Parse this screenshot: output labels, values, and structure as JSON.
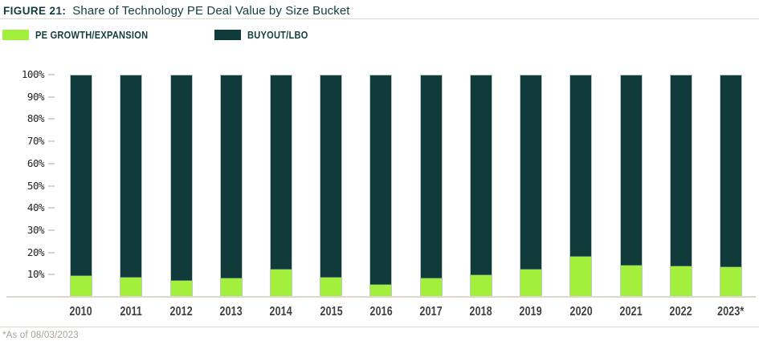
{
  "header": {
    "figure_label": "FIGURE 21:",
    "title": "Share of Technology PE Deal Value by Size Bucket"
  },
  "legend": {
    "items": [
      {
        "label": "PE GROWTH/EXPANSION",
        "color": "#a2ef3c"
      },
      {
        "label": "BUYOUT/LBO",
        "color": "#113a3a"
      }
    ]
  },
  "footer": {
    "note": "*As of 08/03/2023"
  },
  "colors": {
    "growth_green": "#a2ef3c",
    "buyout_teal": "#113a3a",
    "header_teal": "#133d3f",
    "axis_text": "#222222",
    "year_text": "#3f3f3f",
    "rule_gray": "#ddd7ce",
    "footnote_gray": "#a89f96"
  },
  "chart_data": {
    "type": "bar",
    "stacked": true,
    "title": "Share of Technology PE Deal Value by Size Bucket",
    "xlabel": "",
    "ylabel": "",
    "ylim": [
      0,
      100
    ],
    "grid": false,
    "legend_position": "top",
    "categories": [
      "2010",
      "2011",
      "2012",
      "2013",
      "2014",
      "2015",
      "2016",
      "2017",
      "2018",
      "2019",
      "2020",
      "2021",
      "2022",
      "2023*"
    ],
    "series": [
      {
        "name": "PE GROWTH/EXPANSION",
        "color": "#a2ef3c",
        "values": [
          9,
          8.5,
          7,
          8,
          12,
          8.5,
          5,
          8,
          9.5,
          12,
          18,
          14,
          13.5,
          13
        ]
      },
      {
        "name": "BUYOUT/LBO",
        "color": "#113a3a",
        "values": [
          91,
          91.5,
          93,
          92,
          88,
          91.5,
          95,
          92,
          90.5,
          88,
          82,
          86,
          86.5,
          87
        ]
      }
    ],
    "y_ticks": [
      "100%",
      "90%",
      "80%",
      "70%",
      "60%",
      "50%",
      "40%",
      "30%",
      "20%",
      "10%"
    ]
  }
}
